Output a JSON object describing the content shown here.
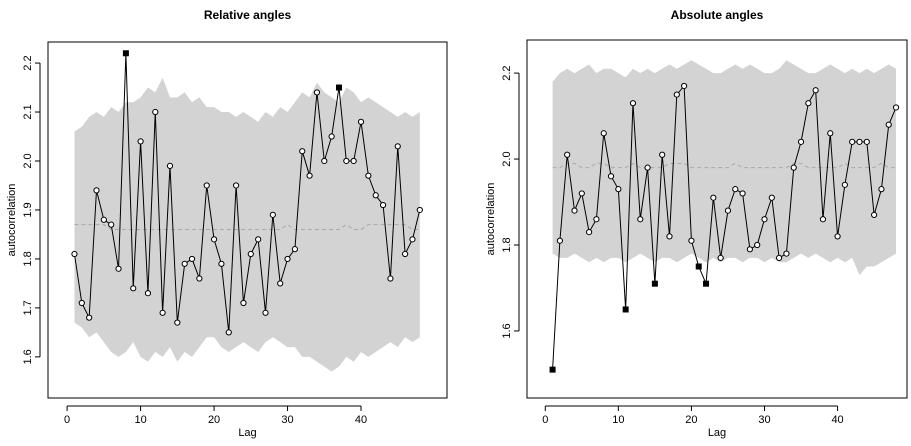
{
  "chart_data": [
    {
      "type": "line",
      "title": "Relative angles",
      "xlabel": "Lag",
      "ylabel": "autocorrelation",
      "x": [
        1,
        2,
        3,
        4,
        5,
        6,
        7,
        8,
        9,
        10,
        11,
        12,
        13,
        14,
        15,
        16,
        17,
        18,
        19,
        20,
        21,
        22,
        23,
        24,
        25,
        26,
        27,
        28,
        29,
        30,
        31,
        32,
        33,
        34,
        35,
        36,
        37,
        38,
        39,
        40,
        41,
        42,
        43,
        44,
        45,
        46,
        47,
        48
      ],
      "values": [
        1.81,
        1.71,
        1.68,
        1.94,
        1.88,
        1.87,
        1.78,
        2.22,
        1.74,
        2.04,
        1.73,
        2.1,
        1.69,
        1.99,
        1.67,
        1.79,
        1.8,
        1.76,
        1.95,
        1.84,
        1.79,
        1.65,
        1.95,
        1.71,
        1.81,
        1.84,
        1.69,
        1.89,
        1.75,
        1.8,
        1.82,
        2.02,
        1.97,
        2.14,
        2.0,
        2.05,
        2.15,
        2.0,
        2.0,
        2.08,
        1.97,
        1.93,
        1.91,
        1.76,
        2.03,
        1.81,
        1.84,
        1.9
      ],
      "band_upper": [
        2.06,
        2.07,
        2.09,
        2.1,
        2.09,
        2.11,
        2.1,
        2.12,
        2.12,
        2.13,
        2.15,
        2.14,
        2.17,
        2.13,
        2.13,
        2.14,
        2.12,
        2.13,
        2.11,
        2.11,
        2.1,
        2.1,
        2.09,
        2.1,
        2.09,
        2.08,
        2.1,
        2.09,
        2.11,
        2.1,
        2.12,
        2.14,
        2.13,
        2.16,
        2.14,
        2.13,
        2.12,
        2.15,
        2.14,
        2.12,
        2.13,
        2.12,
        2.11,
        2.1,
        2.09,
        2.1,
        2.09,
        2.1
      ],
      "band_lower": [
        1.67,
        1.66,
        1.64,
        1.65,
        1.63,
        1.61,
        1.6,
        1.61,
        1.63,
        1.6,
        1.59,
        1.61,
        1.6,
        1.62,
        1.59,
        1.61,
        1.6,
        1.62,
        1.64,
        1.64,
        1.62,
        1.61,
        1.62,
        1.63,
        1.62,
        1.61,
        1.63,
        1.64,
        1.63,
        1.62,
        1.62,
        1.6,
        1.6,
        1.59,
        1.58,
        1.57,
        1.58,
        1.6,
        1.59,
        1.61,
        1.6,
        1.61,
        1.62,
        1.63,
        1.62,
        1.64,
        1.63,
        1.64
      ],
      "band_median": [
        1.87,
        1.87,
        1.87,
        1.87,
        1.87,
        1.86,
        1.86,
        1.86,
        1.86,
        1.86,
        1.86,
        1.86,
        1.86,
        1.86,
        1.86,
        1.86,
        1.86,
        1.86,
        1.86,
        1.86,
        1.86,
        1.86,
        1.86,
        1.86,
        1.86,
        1.86,
        1.86,
        1.86,
        1.86,
        1.87,
        1.86,
        1.86,
        1.86,
        1.86,
        1.86,
        1.86,
        1.86,
        1.87,
        1.86,
        1.86,
        1.87,
        1.87,
        1.87,
        1.87,
        1.87,
        1.87,
        1.86,
        1.86
      ],
      "color": "#000000",
      "band_color": "#d3d3d3",
      "median_color": "#a9a9a9",
      "xlim": [
        -2.6,
        51.7
      ],
      "xticks": [
        0,
        10,
        20,
        30,
        40
      ],
      "ylim": [
        1.516,
        2.243
      ],
      "yticks": [
        1.6,
        1.7,
        1.8,
        1.9,
        {
          "value": 2,
          "label": "2.0"
        },
        2.1,
        2.2
      ]
    },
    {
      "type": "line",
      "title": "Absolute angles",
      "xlabel": "Lag",
      "ylabel": "autocorrelation",
      "x": [
        1,
        2,
        3,
        4,
        5,
        6,
        7,
        8,
        9,
        10,
        11,
        12,
        13,
        14,
        15,
        16,
        17,
        18,
        19,
        20,
        21,
        22,
        23,
        24,
        25,
        26,
        27,
        28,
        29,
        30,
        31,
        32,
        33,
        34,
        35,
        36,
        37,
        38,
        39,
        40,
        41,
        42,
        43,
        44,
        45,
        46,
        47,
        48
      ],
      "values": [
        1.51,
        1.81,
        2.01,
        1.88,
        1.92,
        1.83,
        1.86,
        2.06,
        1.96,
        1.93,
        1.65,
        2.13,
        1.86,
        1.98,
        1.71,
        2.01,
        1.82,
        2.15,
        2.17,
        1.81,
        1.75,
        1.71,
        1.91,
        1.77,
        1.88,
        1.93,
        1.92,
        1.79,
        1.8,
        1.86,
        1.91,
        1.77,
        1.78,
        1.98,
        2.04,
        2.13,
        2.16,
        1.86,
        2.06,
        1.82,
        1.94,
        2.04,
        2.04,
        2.04,
        1.87,
        1.93,
        2.08,
        2.12
      ],
      "band_upper": [
        2.18,
        2.2,
        2.21,
        2.2,
        2.21,
        2.22,
        2.2,
        2.21,
        2.21,
        2.2,
        2.19,
        2.21,
        2.2,
        2.21,
        2.2,
        2.21,
        2.22,
        2.21,
        2.22,
        2.23,
        2.22,
        2.21,
        2.2,
        2.2,
        2.21,
        2.22,
        2.21,
        2.22,
        2.21,
        2.2,
        2.2,
        2.21,
        2.23,
        2.22,
        2.21,
        2.2,
        2.2,
        2.21,
        2.22,
        2.21,
        2.2,
        2.21,
        2.2,
        2.21,
        2.2,
        2.21,
        2.22,
        2.21
      ],
      "band_lower": [
        1.78,
        1.77,
        1.77,
        1.78,
        1.77,
        1.76,
        1.77,
        1.76,
        1.77,
        1.77,
        1.76,
        1.77,
        1.78,
        1.77,
        1.76,
        1.77,
        1.77,
        1.76,
        1.77,
        1.78,
        1.77,
        1.76,
        1.77,
        1.76,
        1.77,
        1.77,
        1.76,
        1.77,
        1.77,
        1.76,
        1.77,
        1.76,
        1.76,
        1.77,
        1.78,
        1.77,
        1.78,
        1.77,
        1.76,
        1.77,
        1.76,
        1.77,
        1.73,
        1.75,
        1.75,
        1.76,
        1.77,
        1.78
      ],
      "band_median": [
        1.98,
        1.98,
        1.99,
        1.99,
        1.98,
        1.98,
        1.99,
        1.99,
        1.98,
        1.98,
        1.98,
        1.99,
        1.98,
        1.98,
        1.98,
        1.98,
        1.99,
        1.99,
        1.99,
        1.98,
        1.98,
        1.98,
        1.98,
        1.98,
        1.98,
        1.99,
        1.98,
        1.98,
        1.98,
        1.98,
        1.98,
        1.98,
        1.98,
        1.99,
        1.99,
        1.98,
        1.98,
        1.98,
        1.98,
        1.98,
        1.99,
        1.98,
        1.98,
        1.98,
        1.98,
        1.99,
        1.98,
        1.98
      ],
      "color": "#000000",
      "band_color": "#d3d3d3",
      "median_color": "#a9a9a9",
      "xlim": [
        -2.5,
        49.5
      ],
      "xticks": [
        0,
        10,
        20,
        30,
        40
      ],
      "ylim": [
        1.444,
        2.277
      ],
      "yticks": [
        1.6,
        1.8,
        {
          "value": 2,
          "label": "2.0"
        },
        2.2
      ]
    }
  ]
}
